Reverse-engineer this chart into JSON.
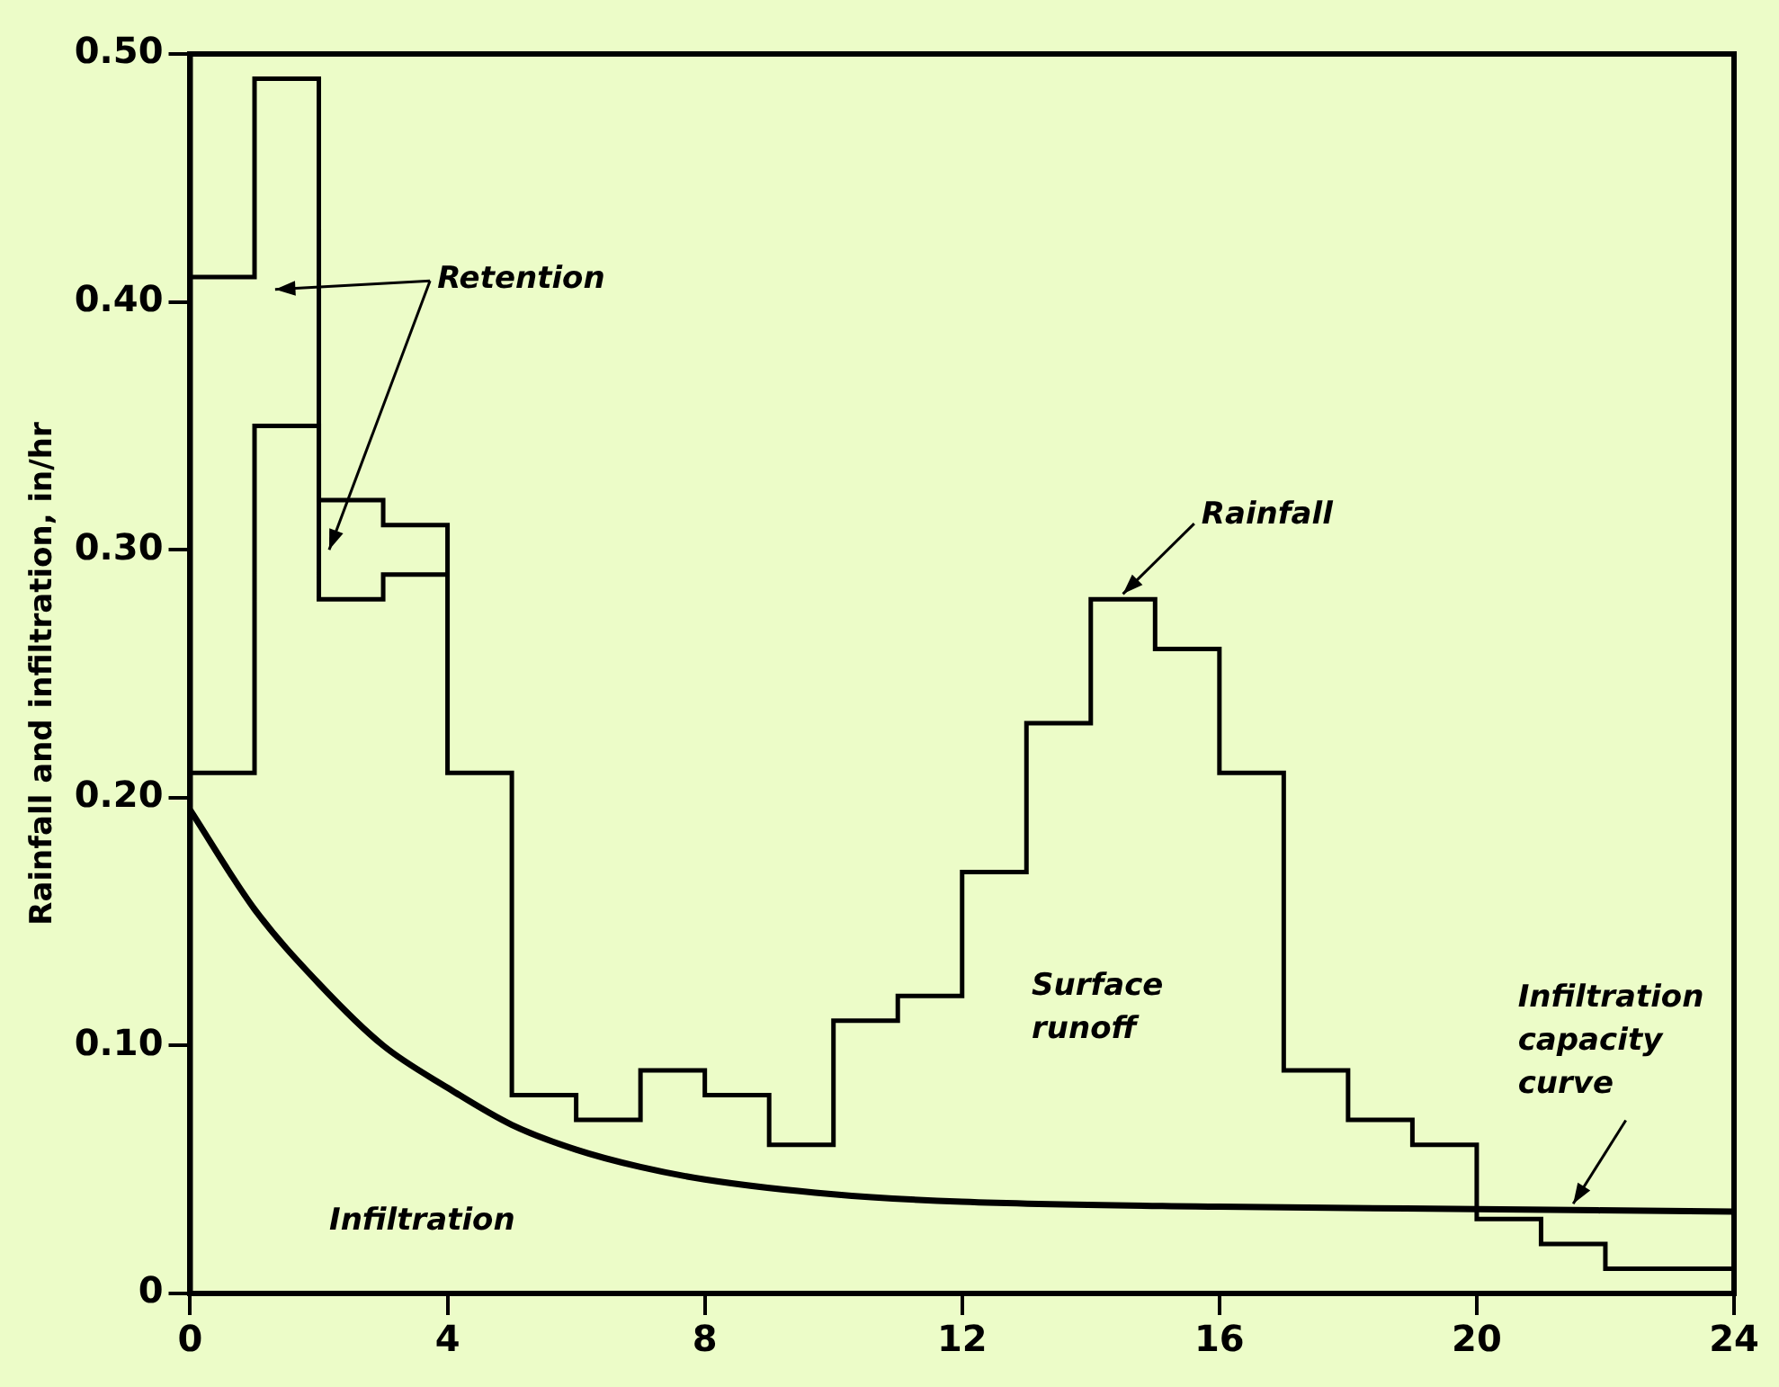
{
  "chart_data": {
    "type": "step",
    "ylabel": "Rainfall and infiltration, in/hr",
    "xlim": [
      0,
      24
    ],
    "xticks": [
      0,
      4,
      8,
      12,
      16,
      20,
      24
    ],
    "ylim": [
      0,
      0.5
    ],
    "yticks": [
      0,
      {
        "value": 0.1,
        "label": "0.10"
      },
      {
        "value": 0.2,
        "label": "0.20"
      },
      {
        "value": 0.3,
        "label": "0.30"
      },
      {
        "value": 0.4,
        "label": "0.40"
      },
      {
        "value": 0.5,
        "label": "0.50"
      }
    ],
    "grid": false,
    "legend": false,
    "series": [
      {
        "color": "#000000",
        "x": [
          0,
          1,
          2,
          3,
          4,
          5,
          6,
          7,
          8,
          9,
          10,
          11,
          12,
          13,
          14,
          15,
          16,
          17,
          18,
          19,
          20,
          21,
          22,
          23,
          24
        ],
        "values": [
          0.41,
          0.49,
          0.32,
          0.31,
          0.21,
          0.08,
          0.07,
          0.09,
          0.08,
          0.06,
          0.11,
          0.12,
          0.17,
          0.23,
          0.28,
          0.26,
          0.21,
          0.09,
          0.07,
          0.06,
          0.03,
          0.02,
          0.01,
          0.01,
          0.01
        ]
      },
      {
        "color": "#000000",
        "x": [
          0,
          1,
          2,
          3,
          4
        ],
        "values": [
          0.21,
          0.35,
          0.28,
          0.29,
          0.29
        ]
      },
      {
        "type": "line",
        "color": "#000000",
        "x": [
          0,
          1,
          2,
          3,
          4,
          5,
          6,
          7,
          8,
          10,
          12,
          16,
          20,
          24
        ],
        "values": [
          0.195,
          0.155,
          0.125,
          0.1,
          0.083,
          0.068,
          0.058,
          0.051,
          0.046,
          0.04,
          0.037,
          0.035,
          0.034,
          0.033
        ]
      }
    ],
    "annotations": [
      "Retention",
      {
        "text": "Rainfall",
        "x": 14.5,
        "y": 0.28
      },
      "Surface\nrunoff",
      {
        "text": "Infiltration\ncapacity\ncurve",
        "x": 21.5,
        "y": 0.034
      },
      "Infiltration"
    ]
  }
}
